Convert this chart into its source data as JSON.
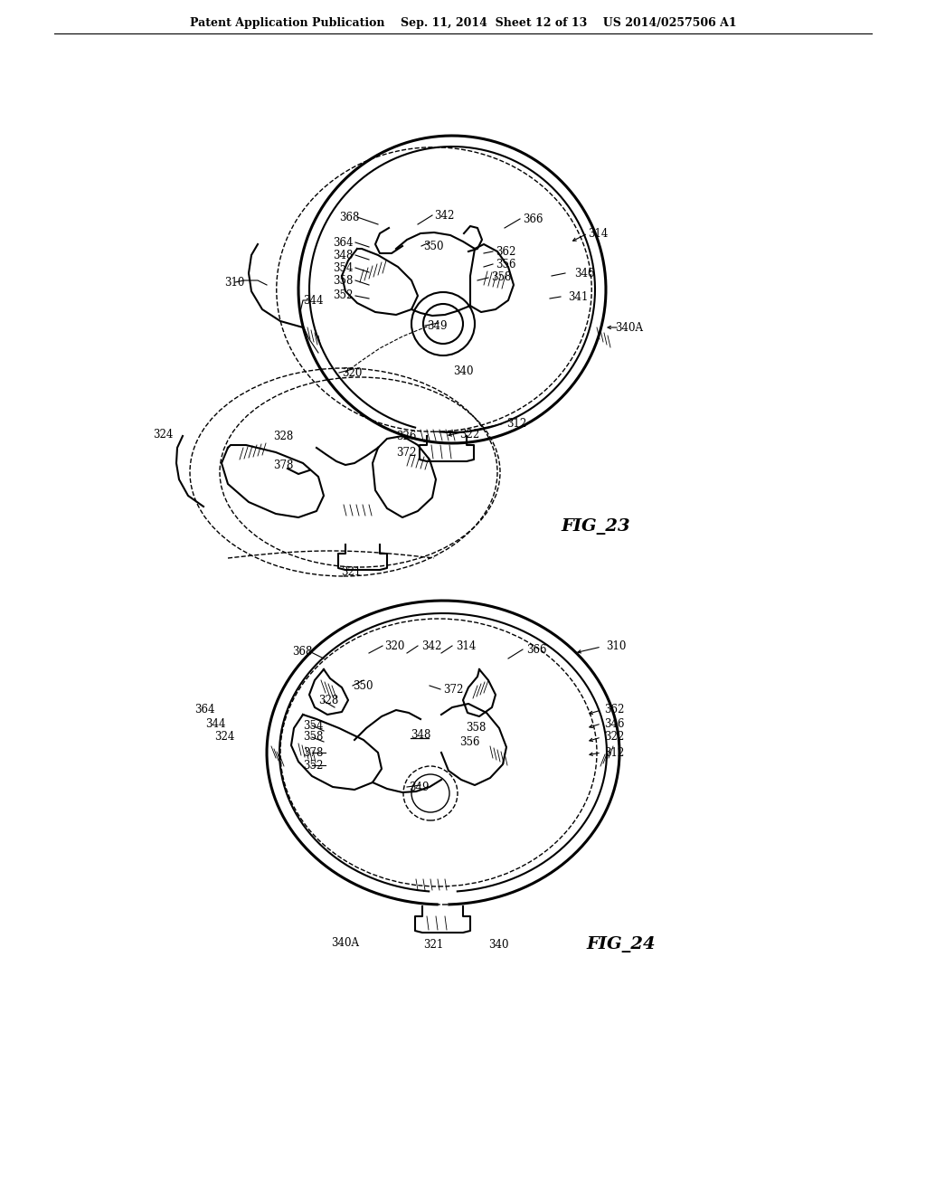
{
  "bg_color": "#ffffff",
  "line_color": "#000000",
  "header_text": "Patent Application Publication    Sep. 11, 2014  Sheet 12 of 13    US 2014/0257506 A1",
  "fig23_label": "FIG_23",
  "fig24_label": "FIG_24",
  "font_size_header": 9,
  "font_size_label": 14,
  "font_size_anno": 8.5
}
